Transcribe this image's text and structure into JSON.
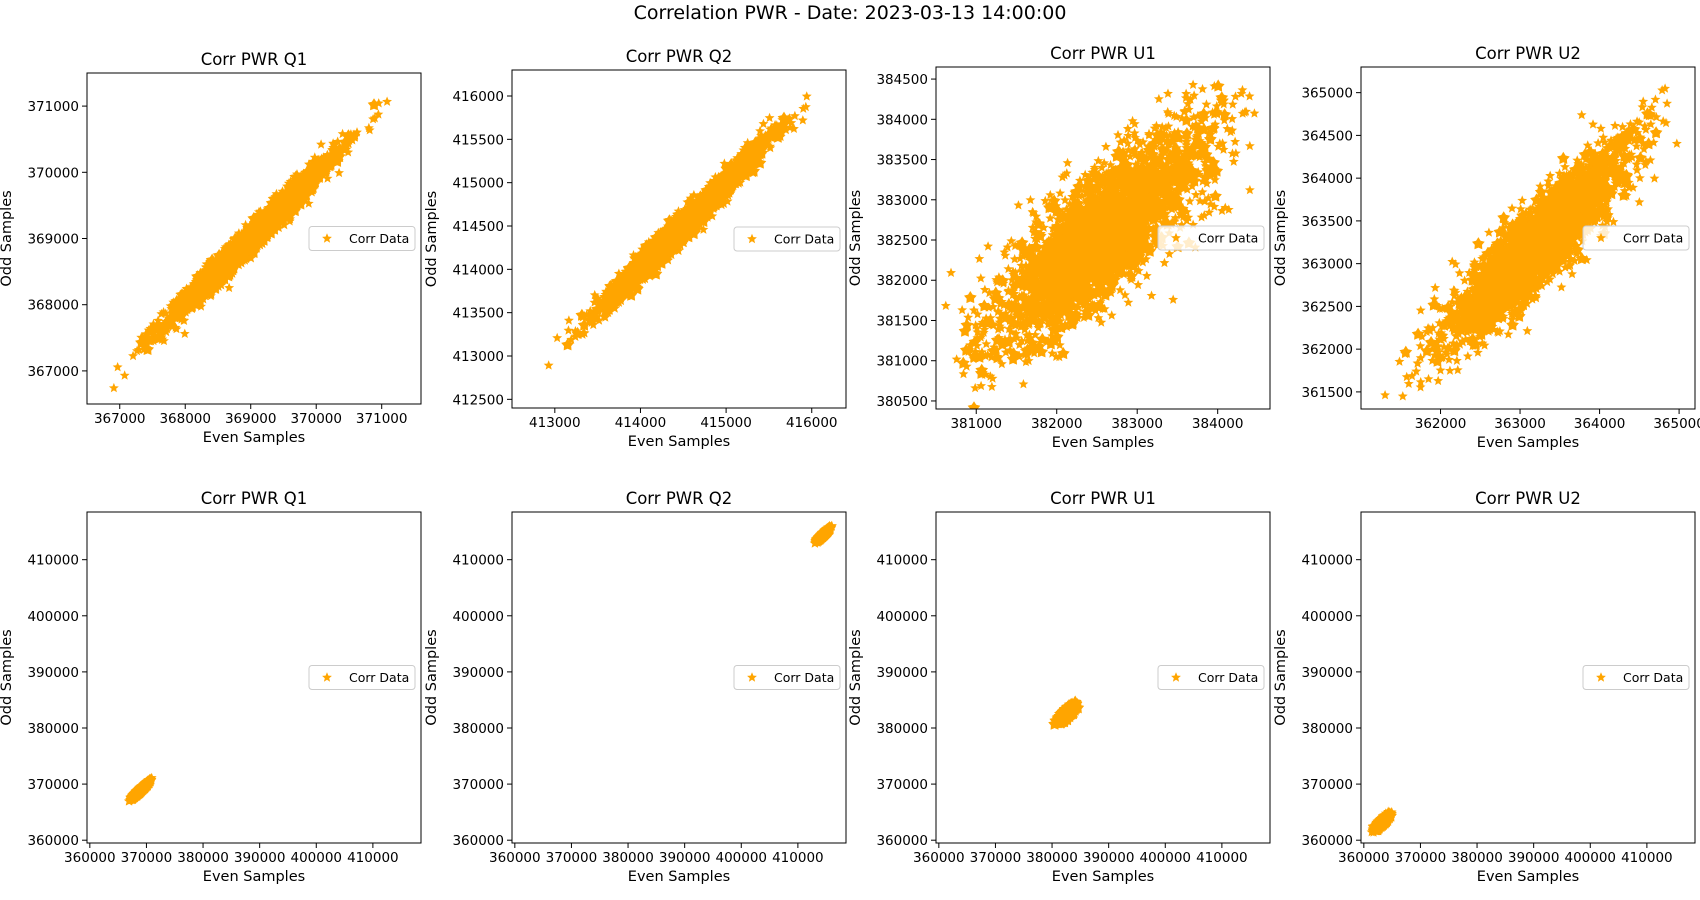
{
  "figure": {
    "suptitle": "Correlation PWR - Date: 2023-03-13 14:00:00"
  },
  "colors": {
    "points": "#ffa500",
    "frame": "#000000"
  },
  "chart_data": [
    {
      "type": "scatter",
      "title": "Corr PWR Q1",
      "xlabel": "Even Samples",
      "ylabel": "Odd Samples",
      "legend": "Corr Data",
      "legend_position": "right",
      "marker": "star",
      "xlim": [
        366500,
        371600
      ],
      "ylim": [
        366500,
        371500
      ],
      "xticks": [
        367000,
        368000,
        369000,
        370000,
        371000
      ],
      "yticks": [
        367000,
        368000,
        369000,
        370000,
        371000
      ],
      "cloud": {
        "x_range": [
          366700,
          371400
        ],
        "y_range": [
          366700,
          371400
        ],
        "center": [
          369000,
          369000
        ],
        "x_sd": 650,
        "y_sd": 640,
        "corr": 0.985
      }
    },
    {
      "type": "scatter",
      "title": "Corr PWR Q2",
      "xlabel": "Even Samples",
      "ylabel": "Odd Samples",
      "legend": "Corr Data",
      "legend_position": "right",
      "marker": "star",
      "xlim": [
        412500,
        416400
      ],
      "ylim": [
        412400,
        416300
      ],
      "xticks": [
        413000,
        414000,
        415000,
        416000
      ],
      "yticks": [
        412500,
        413000,
        413500,
        414000,
        414500,
        415000,
        415500,
        416000
      ],
      "cloud": {
        "x_range": [
          412700,
          416200
        ],
        "y_range": [
          412600,
          416200
        ],
        "center": [
          414500,
          414500
        ],
        "x_sd": 490,
        "y_sd": 490,
        "corr": 0.985
      }
    },
    {
      "type": "scatter",
      "title": "Corr PWR U1",
      "xlabel": "Even Samples",
      "ylabel": "Odd Samples",
      "legend": "Corr Data",
      "legend_position": "right",
      "marker": "star",
      "xlim": [
        380500,
        384650
      ],
      "ylim": [
        380400,
        384650
      ],
      "xticks": [
        381000,
        382000,
        383000,
        384000
      ],
      "yticks": [
        380500,
        381000,
        381500,
        382000,
        382500,
        383000,
        383500,
        384000,
        384500
      ],
      "cloud": {
        "x_range": [
          380600,
          384500
        ],
        "y_range": [
          380600,
          384500
        ],
        "center": [
          382550,
          382550
        ],
        "x_sd": 720,
        "y_sd": 720,
        "corr": 0.8
      }
    },
    {
      "type": "scatter",
      "title": "Corr PWR U2",
      "xlabel": "Even Samples",
      "ylabel": "Odd Samples",
      "legend": "Corr Data",
      "legend_position": "right",
      "marker": "star",
      "xlim": [
        361000,
        365200
      ],
      "ylim": [
        361300,
        365300
      ],
      "xticks": [
        362000,
        363000,
        364000,
        365000
      ],
      "yticks": [
        361500,
        362000,
        362500,
        363000,
        363500,
        364000,
        364500,
        365000
      ],
      "cloud": {
        "x_range": [
          361300,
          365000
        ],
        "y_range": [
          361300,
          365200
        ],
        "center": [
          363200,
          363200
        ],
        "x_sd": 600,
        "y_sd": 600,
        "corr": 0.9
      }
    },
    {
      "type": "scatter",
      "title": "Corr PWR Q1",
      "xlabel": "Even Samples",
      "ylabel": "Odd Samples",
      "legend": "Corr Data",
      "legend_position": "right",
      "marker": "star",
      "xlim": [
        359500,
        418500
      ],
      "ylim": [
        359500,
        418500
      ],
      "xticks": [
        360000,
        370000,
        380000,
        390000,
        400000,
        410000
      ],
      "yticks": [
        360000,
        370000,
        380000,
        390000,
        400000,
        410000
      ],
      "cloud": {
        "x_range": [
          366700,
          371400
        ],
        "y_range": [
          366700,
          371400
        ],
        "center": [
          369000,
          369000
        ],
        "x_sd": 650,
        "y_sd": 640,
        "corr": 0.985
      }
    },
    {
      "type": "scatter",
      "title": "Corr PWR Q2",
      "xlabel": "Even Samples",
      "ylabel": "Odd Samples",
      "legend": "Corr Data",
      "legend_position": "right",
      "marker": "star",
      "xlim": [
        359500,
        418500
      ],
      "ylim": [
        359500,
        418500
      ],
      "xticks": [
        360000,
        370000,
        380000,
        390000,
        400000,
        410000
      ],
      "yticks": [
        360000,
        370000,
        380000,
        390000,
        400000,
        410000
      ],
      "cloud": {
        "x_range": [
          412700,
          416200
        ],
        "y_range": [
          412600,
          416200
        ],
        "center": [
          414500,
          414500
        ],
        "x_sd": 490,
        "y_sd": 490,
        "corr": 0.985
      }
    },
    {
      "type": "scatter",
      "title": "Corr PWR U1",
      "xlabel": "Even Samples",
      "ylabel": "Odd Samples",
      "legend": "Corr Data",
      "legend_position": "right",
      "marker": "star",
      "xlim": [
        359500,
        418500
      ],
      "ylim": [
        359500,
        418500
      ],
      "xticks": [
        360000,
        370000,
        380000,
        390000,
        400000,
        410000
      ],
      "yticks": [
        360000,
        370000,
        380000,
        390000,
        400000,
        410000
      ],
      "cloud": {
        "x_range": [
          380600,
          384500
        ],
        "y_range": [
          380600,
          384500
        ],
        "center": [
          382550,
          382550
        ],
        "x_sd": 720,
        "y_sd": 720,
        "corr": 0.8
      }
    },
    {
      "type": "scatter",
      "title": "Corr PWR U2",
      "xlabel": "Even Samples",
      "ylabel": "Odd Samples",
      "legend": "Corr Data",
      "legend_position": "right",
      "marker": "star",
      "xlim": [
        359500,
        418500
      ],
      "ylim": [
        359500,
        418500
      ],
      "xticks": [
        360000,
        370000,
        380000,
        390000,
        400000,
        410000
      ],
      "yticks": [
        360000,
        370000,
        380000,
        390000,
        400000,
        410000
      ],
      "cloud": {
        "x_range": [
          361300,
          365000
        ],
        "y_range": [
          361300,
          365200
        ],
        "center": [
          363200,
          363200
        ],
        "x_sd": 600,
        "y_sd": 600,
        "corr": 0.9
      }
    }
  ]
}
